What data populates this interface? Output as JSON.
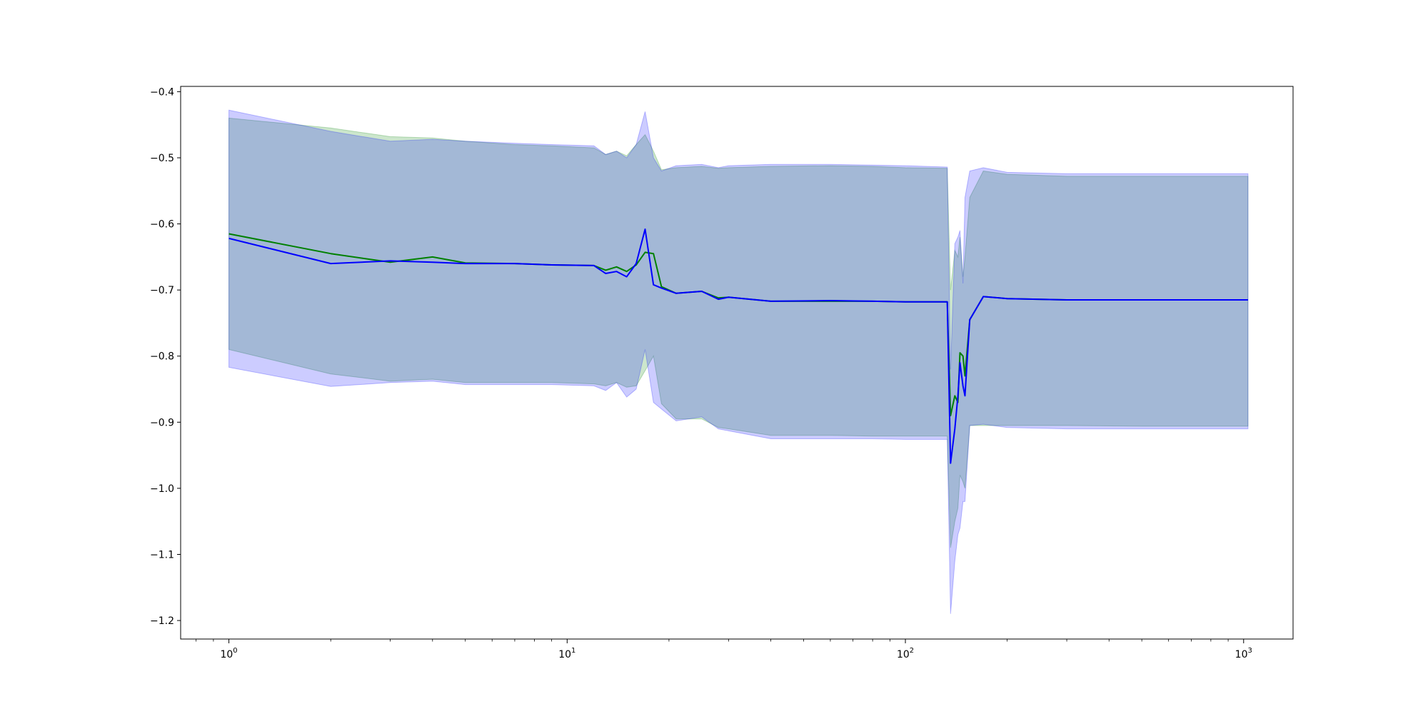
{
  "chart_data": {
    "type": "line",
    "title": "",
    "xlabel": "",
    "ylabel": "",
    "xscale": "log",
    "xlim": [
      0.72,
      1400
    ],
    "ylim": [
      -1.228,
      -0.392
    ],
    "grid": false,
    "x_ticks": [
      {
        "base": "10",
        "exp": "0",
        "value": 1
      },
      {
        "base": "10",
        "exp": "1",
        "value": 10
      },
      {
        "base": "10",
        "exp": "2",
        "value": 100
      },
      {
        "base": "10",
        "exp": "3",
        "value": 1000
      }
    ],
    "y_ticks": [
      "-0.4",
      "-0.5",
      "-0.6",
      "-0.7",
      "-0.8",
      "-0.9",
      "-1.0",
      "-1.1",
      "-1.2"
    ],
    "series": [
      {
        "color": "#008000",
        "band_color": "#008000",
        "x": [
          1,
          2,
          3,
          4,
          5,
          7,
          9,
          12,
          13,
          14,
          15,
          16,
          17,
          18,
          19,
          21,
          25,
          28,
          30,
          40,
          60,
          80,
          100,
          133,
          136,
          140,
          143,
          145,
          148,
          150,
          155,
          170,
          200,
          300,
          500,
          1030
        ],
        "y": [
          -0.615,
          -0.645,
          -0.658,
          -0.65,
          -0.659,
          -0.66,
          -0.662,
          -0.663,
          -0.67,
          -0.665,
          -0.672,
          -0.662,
          -0.643,
          -0.645,
          -0.695,
          -0.705,
          -0.702,
          -0.712,
          -0.711,
          -0.717,
          -0.717,
          -0.717,
          -0.718,
          -0.718,
          -0.89,
          -0.86,
          -0.87,
          -0.795,
          -0.8,
          -0.83,
          -0.745,
          -0.71,
          -0.713,
          -0.715,
          -0.715,
          -0.715
        ],
        "upper": [
          -0.44,
          -0.455,
          -0.468,
          -0.47,
          -0.475,
          -0.48,
          -0.482,
          -0.485,
          -0.495,
          -0.49,
          -0.497,
          -0.48,
          -0.465,
          -0.49,
          -0.518,
          -0.515,
          -0.513,
          -0.516,
          -0.515,
          -0.513,
          -0.512,
          -0.513,
          -0.515,
          -0.516,
          -0.7,
          -0.64,
          -0.65,
          -0.62,
          -0.68,
          -0.65,
          -0.56,
          -0.52,
          -0.525,
          -0.528,
          -0.528,
          -0.528
        ],
        "lower": [
          -0.79,
          -0.827,
          -0.838,
          -0.835,
          -0.84,
          -0.84,
          -0.84,
          -0.842,
          -0.845,
          -0.84,
          -0.847,
          -0.845,
          -0.822,
          -0.8,
          -0.872,
          -0.895,
          -0.895,
          -0.908,
          -0.91,
          -0.92,
          -0.92,
          -0.921,
          -0.921,
          -0.921,
          -1.09,
          -1.05,
          -1.03,
          -0.98,
          -0.99,
          -1.0,
          -0.905,
          -0.905,
          -0.905,
          -0.905,
          -0.906,
          -0.906
        ]
      },
      {
        "color": "#0000ff",
        "band_color": "#0000ff",
        "x": [
          1,
          2,
          3,
          4,
          5,
          7,
          9,
          12,
          13,
          14,
          15,
          16,
          17,
          18,
          19,
          21,
          25,
          28,
          30,
          40,
          60,
          80,
          100,
          133,
          136,
          140,
          143,
          145,
          148,
          150,
          155,
          170,
          200,
          300,
          500,
          1030
        ],
        "y": [
          -0.622,
          -0.66,
          -0.656,
          -0.658,
          -0.66,
          -0.66,
          -0.662,
          -0.663,
          -0.675,
          -0.672,
          -0.68,
          -0.66,
          -0.608,
          -0.692,
          -0.697,
          -0.705,
          -0.702,
          -0.714,
          -0.711,
          -0.717,
          -0.716,
          -0.717,
          -0.718,
          -0.718,
          -0.962,
          -0.91,
          -0.86,
          -0.81,
          -0.845,
          -0.86,
          -0.745,
          -0.71,
          -0.713,
          -0.715,
          -0.715,
          -0.715
        ],
        "upper": [
          -0.428,
          -0.46,
          -0.475,
          -0.472,
          -0.475,
          -0.478,
          -0.48,
          -0.482,
          -0.495,
          -0.49,
          -0.5,
          -0.48,
          -0.43,
          -0.5,
          -0.52,
          -0.512,
          -0.51,
          -0.515,
          -0.512,
          -0.51,
          -0.51,
          -0.511,
          -0.512,
          -0.514,
          -0.82,
          -0.63,
          -0.62,
          -0.61,
          -0.69,
          -0.56,
          -0.52,
          -0.515,
          -0.522,
          -0.524,
          -0.524,
          -0.524
        ],
        "lower": [
          -0.817,
          -0.846,
          -0.84,
          -0.838,
          -0.843,
          -0.843,
          -0.843,
          -0.845,
          -0.852,
          -0.84,
          -0.862,
          -0.85,
          -0.79,
          -0.87,
          -0.88,
          -0.898,
          -0.892,
          -0.91,
          -0.913,
          -0.925,
          -0.925,
          -0.925,
          -0.926,
          -0.926,
          -1.19,
          -1.11,
          -1.07,
          -1.06,
          -1.02,
          -1.02,
          -0.905,
          -0.903,
          -0.908,
          -0.91,
          -0.91,
          -0.91
        ]
      }
    ]
  }
}
